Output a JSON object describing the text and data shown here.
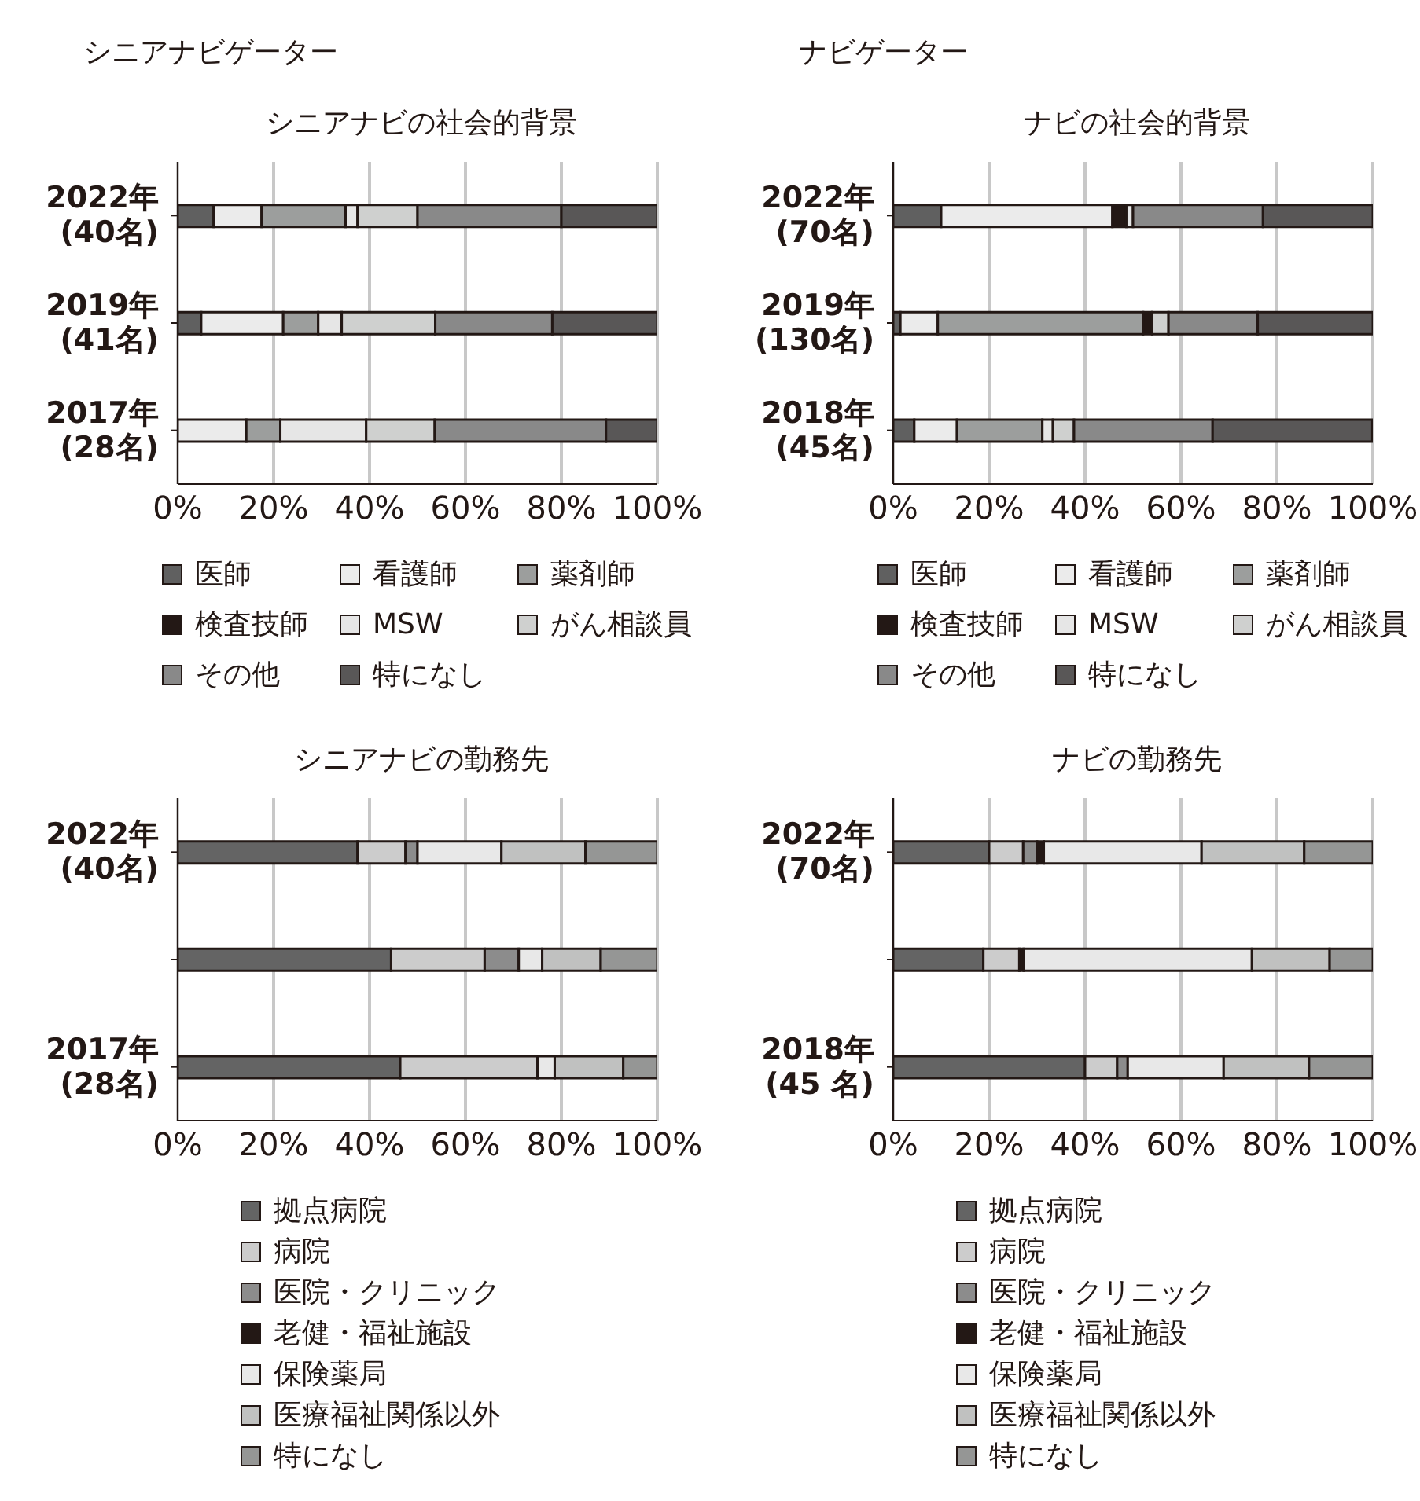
{
  "chart_data": [
    {
      "type": "bar",
      "orientation": "horizontal",
      "stacked": true,
      "subtitle": "シニアナビゲーター",
      "title": "シニアナビの社会的背景",
      "categories": [
        "2022年\n(40名)",
        "2019年\n(41名)",
        "2017年\n(28名)"
      ],
      "series": [
        {
          "name": "医師",
          "color": "#606060",
          "values": [
            7.5,
            4.9,
            0
          ]
        },
        {
          "name": "看護師",
          "color": "#ebebeb",
          "values": [
            10,
            17.1,
            14.3
          ]
        },
        {
          "name": "薬剤師",
          "color": "#9c9e9d",
          "values": [
            17.5,
            7.3,
            7.1
          ]
        },
        {
          "name": "検査技師",
          "color": "#231815",
          "values": [
            0,
            0,
            0
          ]
        },
        {
          "name": "MSW",
          "color": "#e6e6e6",
          "values": [
            2.5,
            4.9,
            17.9
          ]
        },
        {
          "name": "がん相談員",
          "color": "#cfd0cf",
          "values": [
            12.5,
            19.5,
            14.3
          ]
        },
        {
          "name": "その他",
          "color": "#898989",
          "values": [
            30,
            24.4,
            35.7
          ]
        },
        {
          "name": "特になし",
          "color": "#595757",
          "values": [
            20,
            22,
            10.7
          ]
        }
      ],
      "xlim": [
        0,
        100
      ],
      "xticks": [
        {
          "value": 0,
          "label": "0%"
        },
        {
          "value": 20,
          "label": "20%"
        },
        {
          "value": 40,
          "label": "40%"
        },
        {
          "value": 60,
          "label": "60%"
        },
        {
          "value": 80,
          "label": "80%"
        },
        {
          "value": 100,
          "label": "100%"
        }
      ],
      "grid": "x",
      "legend": "bottom"
    },
    {
      "type": "bar",
      "orientation": "horizontal",
      "stacked": true,
      "subtitle": "ナビゲーター",
      "title": "ナビの社会的背景",
      "categories": [
        "2022年\n(70名)",
        "2019年\n(130名)",
        "2018年\n(45名)"
      ],
      "series": [
        {
          "name": "医師",
          "color": "#606060",
          "values": [
            10,
            1.5,
            4.4
          ]
        },
        {
          "name": "看護師",
          "color": "#ebebeb",
          "values": [
            35.7,
            7.8,
            8.9
          ]
        },
        {
          "name": "薬剤師",
          "color": "#9c9e9d",
          "values": [
            0,
            42.8,
            17.8
          ]
        },
        {
          "name": "検査技師",
          "color": "#231815",
          "values": [
            2.9,
            1.9,
            0
          ]
        },
        {
          "name": "MSW",
          "color": "#e6e6e6",
          "values": [
            1.4,
            0,
            2.2
          ]
        },
        {
          "name": "がん相談員",
          "color": "#cfd0cf",
          "values": [
            0,
            3.4,
            4.4
          ]
        },
        {
          "name": "その他",
          "color": "#898989",
          "values": [
            27.1,
            18.6,
            28.9
          ]
        },
        {
          "name": "特になし",
          "color": "#595757",
          "values": [
            22.9,
            24,
            33.3
          ]
        }
      ],
      "xlim": [
        0,
        100
      ],
      "xticks": [
        {
          "value": 0,
          "label": "0%"
        },
        {
          "value": 20,
          "label": "20%"
        },
        {
          "value": 40,
          "label": "40%"
        },
        {
          "value": 60,
          "label": "60%"
        },
        {
          "value": 80,
          "label": "80%"
        },
        {
          "value": 100,
          "label": "100%"
        }
      ],
      "grid": "x",
      "legend": "bottom"
    },
    {
      "type": "bar",
      "orientation": "horizontal",
      "stacked": true,
      "title": "シニアナビの勤務先",
      "categories": [
        "2022年\n(40名)",
        null,
        "2017年\n(28名)"
      ],
      "series": [
        {
          "name": "拠点病院",
          "color": "#646464",
          "values": [
            37.5,
            44.5,
            46.4
          ]
        },
        {
          "name": "病院",
          "color": "#cccccc",
          "values": [
            10,
            19.5,
            28.6
          ]
        },
        {
          "name": "医院・クリニック",
          "color": "#8c8c8c",
          "values": [
            2.5,
            7.1,
            0
          ]
        },
        {
          "name": "老健・福祉施設",
          "color": "#231815",
          "values": [
            0,
            0,
            0
          ]
        },
        {
          "name": "保険薬局",
          "color": "#e8e8e8",
          "values": [
            17.5,
            4.9,
            3.6
          ]
        },
        {
          "name": "医療福祉関係以外",
          "color": "#c0c1c0",
          "values": [
            17.5,
            12.2,
            14.3
          ]
        },
        {
          "name": "特になし",
          "color": "#959695",
          "values": [
            15,
            11.8,
            7.1
          ]
        }
      ],
      "xlim": [
        0,
        100
      ],
      "xticks": [
        {
          "value": 0,
          "label": "0%"
        },
        {
          "value": 20,
          "label": "20%"
        },
        {
          "value": 40,
          "label": "40%"
        },
        {
          "value": 60,
          "label": "60%"
        },
        {
          "value": 80,
          "label": "80%"
        },
        {
          "value": 100,
          "label": "100%"
        }
      ],
      "grid": "x",
      "legend": "bottom"
    },
    {
      "type": "bar",
      "orientation": "horizontal",
      "stacked": true,
      "title": "ナビの勤務先",
      "categories": [
        "2022年\n(70名)",
        null,
        "2018年\n(45 名)"
      ],
      "series": [
        {
          "name": "拠点病院",
          "color": "#646464",
          "values": [
            20,
            18.8,
            40
          ]
        },
        {
          "name": "病院",
          "color": "#cccccc",
          "values": [
            7.1,
            7.5,
            6.7
          ]
        },
        {
          "name": "医院・クリニック",
          "color": "#8c8c8c",
          "values": [
            2.9,
            0,
            2.2
          ]
        },
        {
          "name": "老健・福祉施設",
          "color": "#231815",
          "values": [
            1.4,
            0.9,
            0
          ]
        },
        {
          "name": "保険薬局",
          "color": "#e8e8e8",
          "values": [
            32.9,
            47.6,
            20
          ]
        },
        {
          "name": "医療福祉関係以外",
          "color": "#c0c1c0",
          "values": [
            21.4,
            16.2,
            17.8
          ]
        },
        {
          "name": "特になし",
          "color": "#959695",
          "values": [
            14.3,
            9,
            13.3
          ]
        }
      ],
      "xlim": [
        0,
        100
      ],
      "xticks": [
        {
          "value": 0,
          "label": "0%"
        },
        {
          "value": 20,
          "label": "20%"
        },
        {
          "value": 40,
          "label": "40%"
        },
        {
          "value": 60,
          "label": "60%"
        },
        {
          "value": 80,
          "label": "80%"
        },
        {
          "value": 100,
          "label": "100%"
        }
      ],
      "grid": "x",
      "legend": "bottom"
    }
  ]
}
